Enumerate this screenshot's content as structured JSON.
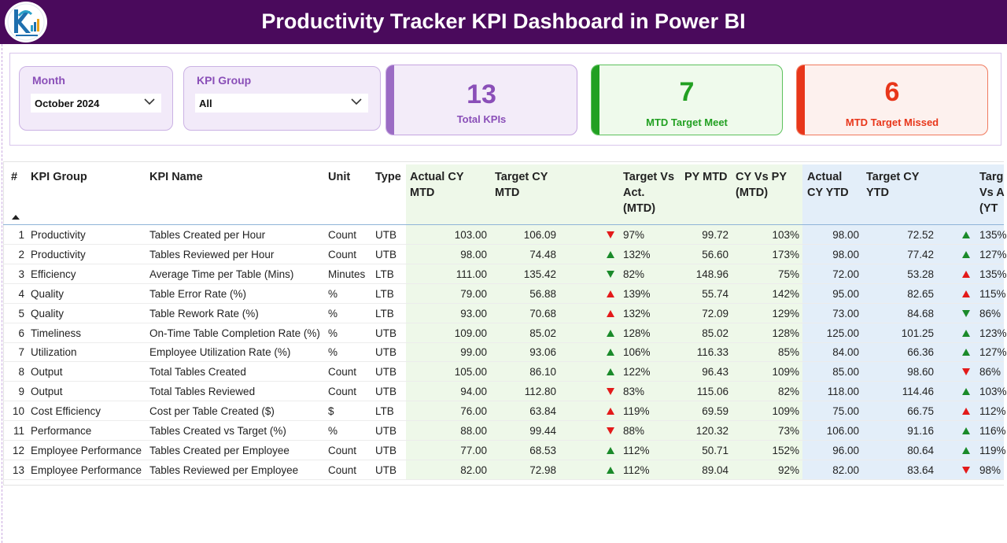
{
  "header": {
    "title": "Productivity Tracker KPI Dashboard in Power BI",
    "logo_icon": "kpi-logo-icon"
  },
  "filters": {
    "month": {
      "label": "Month",
      "value": "October 2024"
    },
    "kpi_group": {
      "label": "KPI Group",
      "value": "All"
    }
  },
  "cards": {
    "total": {
      "value": "13",
      "label": "Total KPIs",
      "color": "#8a4fb8"
    },
    "meet": {
      "value": "7",
      "label": "MTD Target Meet",
      "color": "#22a022"
    },
    "missed": {
      "value": "6",
      "label": "MTD Target Missed",
      "color": "#e8361a"
    }
  },
  "colors": {
    "header_bg": "#4a0a5c",
    "mtd_band": "#eef8e9",
    "ytd_band": "#e3eef9",
    "up": "#1a8a2a",
    "down": "#e31a1a"
  },
  "table": {
    "headers": {
      "num": "#",
      "group": "KPI Group",
      "name": "KPI Name",
      "unit": "Unit",
      "type": "Type",
      "actual_mtd": [
        "Actual CY",
        "MTD"
      ],
      "target_mtd": [
        "Target CY",
        "MTD"
      ],
      "tva_mtd": [
        "Target Vs",
        "Act.",
        "(MTD)"
      ],
      "py_mtd": [
        "PY MTD"
      ],
      "cvp_mtd": [
        "CY Vs PY",
        "(MTD)"
      ],
      "actual_ytd": [
        "Actual",
        "CY YTD"
      ],
      "target_ytd": [
        "Target CY",
        "YTD"
      ],
      "tva_ytd": [
        "Targ",
        "Vs A",
        "(YT"
      ]
    },
    "rows": [
      {
        "num": "1",
        "group": "Productivity",
        "name": "Tables Created per Hour",
        "unit": "Count",
        "type": "UTB",
        "actual_mtd": "103.00",
        "target_mtd": "106.09",
        "mtd_trend": "down",
        "tva_mtd": "97%",
        "py_mtd": "99.72",
        "cvp_mtd": "103%",
        "actual_ytd": "98.00",
        "target_ytd": "72.52",
        "ytd_trend": "up",
        "tva_ytd": "135%"
      },
      {
        "num": "2",
        "group": "Productivity",
        "name": "Tables Reviewed per Hour",
        "unit": "Count",
        "type": "UTB",
        "actual_mtd": "98.00",
        "target_mtd": "74.48",
        "mtd_trend": "up",
        "tva_mtd": "132%",
        "py_mtd": "56.60",
        "cvp_mtd": "173%",
        "actual_ytd": "98.00",
        "target_ytd": "77.42",
        "ytd_trend": "up",
        "tva_ytd": "127%"
      },
      {
        "num": "3",
        "group": "Efficiency",
        "name": "Average Time per Table (Mins)",
        "unit": "Minutes",
        "type": "LTB",
        "actual_mtd": "111.00",
        "target_mtd": "135.42",
        "mtd_trend": "down-good",
        "tva_mtd": "82%",
        "py_mtd": "148.96",
        "cvp_mtd": "75%",
        "actual_ytd": "72.00",
        "target_ytd": "53.28",
        "ytd_trend": "up-bad",
        "tva_ytd": "135%"
      },
      {
        "num": "4",
        "group": "Quality",
        "name": "Table Error Rate (%)",
        "unit": "%",
        "type": "LTB",
        "actual_mtd": "79.00",
        "target_mtd": "56.88",
        "mtd_trend": "up-bad",
        "tva_mtd": "139%",
        "py_mtd": "55.74",
        "cvp_mtd": "142%",
        "actual_ytd": "95.00",
        "target_ytd": "82.65",
        "ytd_trend": "up-bad",
        "tva_ytd": "115%"
      },
      {
        "num": "5",
        "group": "Quality",
        "name": "Table Rework Rate (%)",
        "unit": "%",
        "type": "LTB",
        "actual_mtd": "93.00",
        "target_mtd": "70.68",
        "mtd_trend": "up-bad",
        "tva_mtd": "132%",
        "py_mtd": "72.09",
        "cvp_mtd": "129%",
        "actual_ytd": "73.00",
        "target_ytd": "84.68",
        "ytd_trend": "down-good",
        "tva_ytd": "86%"
      },
      {
        "num": "6",
        "group": "Timeliness",
        "name": "On-Time Table Completion Rate (%)",
        "unit": "%",
        "type": "UTB",
        "actual_mtd": "109.00",
        "target_mtd": "85.02",
        "mtd_trend": "up",
        "tva_mtd": "128%",
        "py_mtd": "85.02",
        "cvp_mtd": "128%",
        "actual_ytd": "125.00",
        "target_ytd": "101.25",
        "ytd_trend": "up",
        "tva_ytd": "123%"
      },
      {
        "num": "7",
        "group": "Utilization",
        "name": "Employee Utilization Rate (%)",
        "unit": "%",
        "type": "UTB",
        "actual_mtd": "99.00",
        "target_mtd": "93.06",
        "mtd_trend": "up",
        "tva_mtd": "106%",
        "py_mtd": "116.33",
        "cvp_mtd": "85%",
        "actual_ytd": "84.00",
        "target_ytd": "66.36",
        "ytd_trend": "up",
        "tva_ytd": "127%"
      },
      {
        "num": "8",
        "group": "Output",
        "name": "Total Tables Created",
        "unit": "Count",
        "type": "UTB",
        "actual_mtd": "105.00",
        "target_mtd": "86.10",
        "mtd_trend": "up",
        "tva_mtd": "122%",
        "py_mtd": "96.43",
        "cvp_mtd": "109%",
        "actual_ytd": "85.00",
        "target_ytd": "98.60",
        "ytd_trend": "down",
        "tva_ytd": "86%"
      },
      {
        "num": "9",
        "group": "Output",
        "name": "Total Tables Reviewed",
        "unit": "Count",
        "type": "UTB",
        "actual_mtd": "94.00",
        "target_mtd": "112.80",
        "mtd_trend": "down",
        "tva_mtd": "83%",
        "py_mtd": "115.06",
        "cvp_mtd": "82%",
        "actual_ytd": "118.00",
        "target_ytd": "114.46",
        "ytd_trend": "up",
        "tva_ytd": "103%"
      },
      {
        "num": "10",
        "group": "Cost Efficiency",
        "name": "Cost per Table Created ($)",
        "unit": "$",
        "type": "LTB",
        "actual_mtd": "76.00",
        "target_mtd": "63.84",
        "mtd_trend": "up-bad",
        "tva_mtd": "119%",
        "py_mtd": "69.59",
        "cvp_mtd": "109%",
        "actual_ytd": "75.00",
        "target_ytd": "66.75",
        "ytd_trend": "up-bad",
        "tva_ytd": "112%"
      },
      {
        "num": "11",
        "group": "Performance",
        "name": "Tables Created vs Target (%)",
        "unit": "%",
        "type": "UTB",
        "actual_mtd": "88.00",
        "target_mtd": "99.44",
        "mtd_trend": "down",
        "tva_mtd": "88%",
        "py_mtd": "120.32",
        "cvp_mtd": "73%",
        "actual_ytd": "106.00",
        "target_ytd": "91.16",
        "ytd_trend": "up",
        "tva_ytd": "116%"
      },
      {
        "num": "12",
        "group": "Employee Performance",
        "name": "Tables Created per Employee",
        "unit": "Count",
        "type": "UTB",
        "actual_mtd": "77.00",
        "target_mtd": "68.53",
        "mtd_trend": "up",
        "tva_mtd": "112%",
        "py_mtd": "50.71",
        "cvp_mtd": "152%",
        "actual_ytd": "96.00",
        "target_ytd": "80.64",
        "ytd_trend": "up",
        "tva_ytd": "119%"
      },
      {
        "num": "13",
        "group": "Employee Performance",
        "name": "Tables Reviewed per Employee",
        "unit": "Count",
        "type": "UTB",
        "actual_mtd": "82.00",
        "target_mtd": "72.98",
        "mtd_trend": "up",
        "tva_mtd": "112%",
        "py_mtd": "89.04",
        "cvp_mtd": "92%",
        "actual_ytd": "82.00",
        "target_ytd": "83.64",
        "ytd_trend": "down",
        "tva_ytd": "98%"
      }
    ]
  }
}
